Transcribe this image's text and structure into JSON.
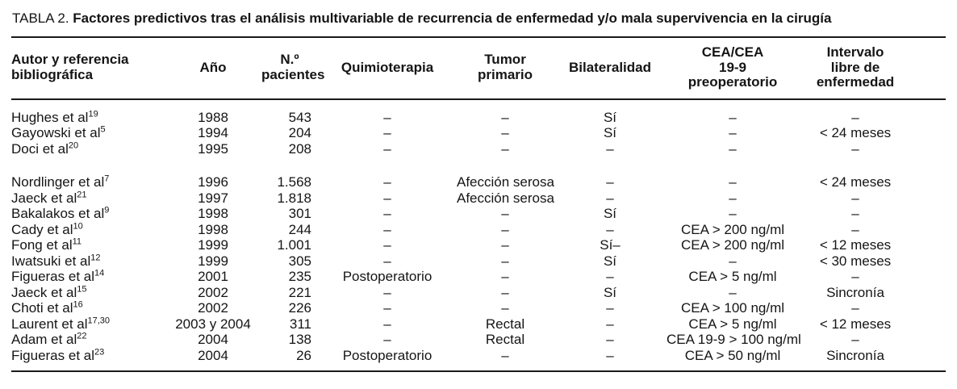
{
  "title": {
    "label": "TABLA 2.",
    "caption": "Factores predictivos tras el análisis multivariable de recurrencia de enfermedad y/o mala supervivencia en la cirugía"
  },
  "table": {
    "columns": [
      {
        "id": "author",
        "label": "Autor y referencia\nbibliográfica"
      },
      {
        "id": "year",
        "label": "Año"
      },
      {
        "id": "patients",
        "label": "N.º\npacientes"
      },
      {
        "id": "chemotherapy",
        "label": "Quimioterapia"
      },
      {
        "id": "primary_tumor",
        "label": "Tumor\nprimario"
      },
      {
        "id": "bilaterality",
        "label": "Bilateralidad"
      },
      {
        "id": "cea",
        "label": "CEA/CEA\n19-9\npreoperatorio"
      },
      {
        "id": "disease_free_interval",
        "label": "Intervalo\nlibre de\nenfermedad"
      }
    ],
    "rows": [
      {
        "author": "Hughes et al",
        "ref": "19",
        "year": "1988",
        "patients": "543",
        "chemotherapy": "–",
        "primary_tumor": "–",
        "bilaterality": "Sí",
        "cea": "–",
        "disease_free_interval": "–",
        "group_start": false
      },
      {
        "author": "Gayowski et al",
        "ref": "5",
        "year": "1994",
        "patients": "204",
        "chemotherapy": "–",
        "primary_tumor": "–",
        "bilaterality": "Sí",
        "cea": "–",
        "disease_free_interval": "< 24 meses",
        "group_start": false
      },
      {
        "author": "Doci et al",
        "ref": "20",
        "year": "1995",
        "patients": "208",
        "chemotherapy": "–",
        "primary_tumor": "–",
        "bilaterality": "–",
        "cea": "–",
        "disease_free_interval": "–",
        "group_start": false
      },
      {
        "author": "Nordlinger et al",
        "ref": "7",
        "year": "1996",
        "patients": "1.568",
        "chemotherapy": "–",
        "primary_tumor": "Afección serosa",
        "bilaterality": "–",
        "cea": "–",
        "disease_free_interval": "< 24 meses",
        "group_start": true
      },
      {
        "author": "Jaeck et al",
        "ref": "21",
        "year": "1997",
        "patients": "1.818",
        "chemotherapy": "–",
        "primary_tumor": "Afección serosa",
        "bilaterality": "–",
        "cea": "–",
        "disease_free_interval": "–",
        "group_start": false
      },
      {
        "author": "Bakalakos et al",
        "ref": "9",
        "year": "1998",
        "patients": "301",
        "chemotherapy": "–",
        "primary_tumor": "–",
        "bilaterality": "Sí",
        "cea": "–",
        "disease_free_interval": "–",
        "group_start": false
      },
      {
        "author": "Cady et al",
        "ref": "10",
        "year": "1998",
        "patients": "244",
        "chemotherapy": "–",
        "primary_tumor": "–",
        "bilaterality": "–",
        "cea": "CEA > 200 ng/ml",
        "disease_free_interval": "–",
        "group_start": false
      },
      {
        "author": "Fong et al",
        "ref": "11",
        "year": "1999",
        "patients": "1.001",
        "chemotherapy": "–",
        "primary_tumor": "–",
        "bilaterality": "Sí–",
        "cea": "CEA > 200 ng/ml",
        "disease_free_interval": "< 12 meses",
        "group_start": false
      },
      {
        "author": "Iwatsuki et al",
        "ref": "12",
        "year": "1999",
        "patients": "305",
        "chemotherapy": "–",
        "primary_tumor": "–",
        "bilaterality": "Sí",
        "cea": "–",
        "disease_free_interval": "< 30 meses",
        "group_start": false
      },
      {
        "author": "Figueras et al",
        "ref": "14",
        "year": "2001",
        "patients": "235",
        "chemotherapy": "Postoperatorio",
        "primary_tumor": "–",
        "bilaterality": "–",
        "cea": "CEA > 5 ng/ml",
        "disease_free_interval": "–",
        "group_start": false
      },
      {
        "author": "Jaeck et al",
        "ref": "15",
        "year": "2002",
        "patients": "221",
        "chemotherapy": "–",
        "primary_tumor": "–",
        "bilaterality": "Sí",
        "cea": "–",
        "disease_free_interval": "Sincronía",
        "group_start": false
      },
      {
        "author": "Choti et al",
        "ref": "16",
        "year": "2002",
        "patients": "226",
        "chemotherapy": "–",
        "primary_tumor": "–",
        "bilaterality": "–",
        "cea": "CEA > 100 ng/ml",
        "disease_free_interval": "–",
        "group_start": false
      },
      {
        "author": "Laurent et al",
        "ref": "17,30",
        "year": "2003 y 2004",
        "patients": "311",
        "chemotherapy": "–",
        "primary_tumor": "Rectal",
        "bilaterality": "–",
        "cea": "CEA > 5 ng/ml",
        "disease_free_interval": "< 12 meses",
        "group_start": false
      },
      {
        "author": "Adam et al",
        "ref": "22",
        "year": "2004",
        "patients": "138",
        "chemotherapy": "–",
        "primary_tumor": "Rectal",
        "bilaterality": "–",
        "cea": "CEA 19-9 > 100 ng/ml",
        "disease_free_interval": "–",
        "group_start": false
      },
      {
        "author": "Figueras et al",
        "ref": "23",
        "year": "2004",
        "patients": "26",
        "chemotherapy": "Postoperatorio",
        "primary_tumor": "–",
        "bilaterality": "–",
        "cea": "CEA > 50 ng/ml",
        "disease_free_interval": "Sincronía",
        "group_start": false
      }
    ]
  }
}
